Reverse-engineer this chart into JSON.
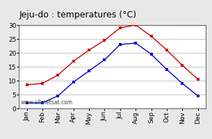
{
  "title": "Jeju-do : temperatures (°C)",
  "months": [
    "Jan",
    "Feb",
    "Mar",
    "Apr",
    "May",
    "Jun",
    "Jul",
    "Aug",
    "Sep",
    "Oct",
    "Nov",
    "Dec"
  ],
  "max_temps": [
    8.5,
    9.0,
    12.0,
    17.0,
    21.0,
    24.5,
    29.0,
    30.0,
    26.0,
    21.0,
    15.5,
    10.5
  ],
  "min_temps": [
    2.0,
    2.0,
    4.5,
    9.5,
    13.5,
    17.5,
    23.0,
    23.5,
    19.5,
    14.0,
    9.0,
    4.5
  ],
  "max_color": "#cc0000",
  "min_color": "#0000cc",
  "bg_color": "#e8e8e8",
  "plot_bg": "#ffffff",
  "ylim": [
    0,
    30
  ],
  "yticks": [
    0,
    5,
    10,
    15,
    20,
    25,
    30
  ],
  "grid_color": "#bbbbbb",
  "watermark": "www.allmetsat.com",
  "title_fontsize": 9,
  "tick_fontsize": 6.5,
  "watermark_fontsize": 5.5
}
